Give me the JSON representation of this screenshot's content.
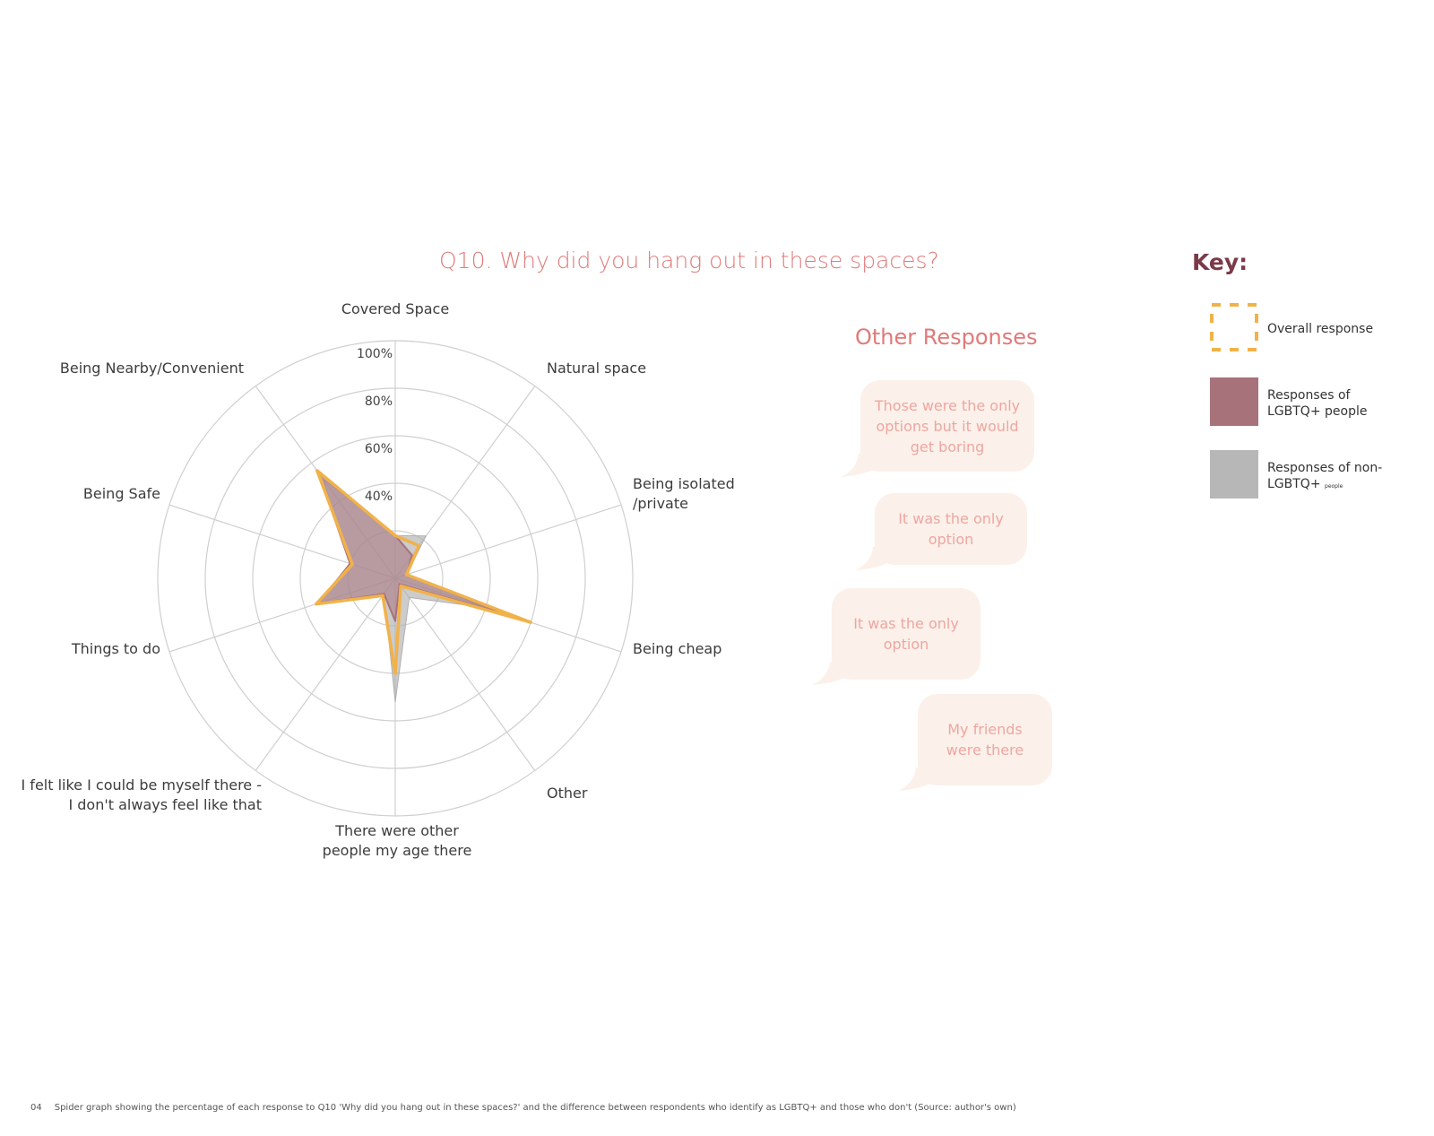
{
  "chart_data": {
    "type": "radar",
    "title": "Q10. Why did you hang out in these spaces?",
    "axes": [
      "Covered Space",
      "Natural space",
      "Being isolated\n/private",
      "Being cheap",
      "Other",
      "There were other\npeople my age there",
      "I felt like I could be myself there -\nI don't always feel like that",
      "Things to do",
      "Being Safe",
      "Being Nearby/Convenient"
    ],
    "rlim": [
      0,
      100
    ],
    "ticks": [
      "40%",
      "60%",
      "80%",
      "100%"
    ],
    "tick_values": [
      40,
      60,
      80,
      100
    ],
    "grid": true,
    "series": [
      {
        "name": "Responses of non-LGBTQ+ people",
        "color": "#b7b7b7",
        "values": [
          18,
          22,
          5,
          40,
          10,
          52,
          8,
          35,
          20,
          52
        ]
      },
      {
        "name": "Responses of LGBTQ+ people",
        "color": "#a8727b",
        "values": [
          18,
          12,
          5,
          50,
          3,
          18,
          8,
          34,
          20,
          55
        ]
      },
      {
        "name": "Overall response",
        "color": "#f1b24a",
        "values": [
          18,
          17,
          5,
          60,
          4,
          40,
          9,
          35,
          19,
          56
        ]
      }
    ]
  },
  "other_responses": {
    "title": "Other Responses",
    "items": [
      "Those were the only options but it would get boring",
      "It was the only option",
      "It was the only option",
      "My friends were there"
    ]
  },
  "key": {
    "title": "Key:",
    "overall": "Overall response",
    "lgbt_line1": "Responses of",
    "lgbt_line2": "LGBTQ+ people",
    "non_line1": "Responses of non-",
    "non_line2": "LGBTQ+",
    "non_small": "people",
    "colors": {
      "overall": "#f1b24a",
      "lgbt": "#a8727b",
      "non": "#b7b7b7"
    }
  },
  "caption": {
    "number": "04",
    "text": "Spider graph showing the percentage of each response to Q10 'Why did you hang out in these spaces?' and the difference between respondents who identify as LGBTQ+ and those who don't (Source: author's own)"
  }
}
